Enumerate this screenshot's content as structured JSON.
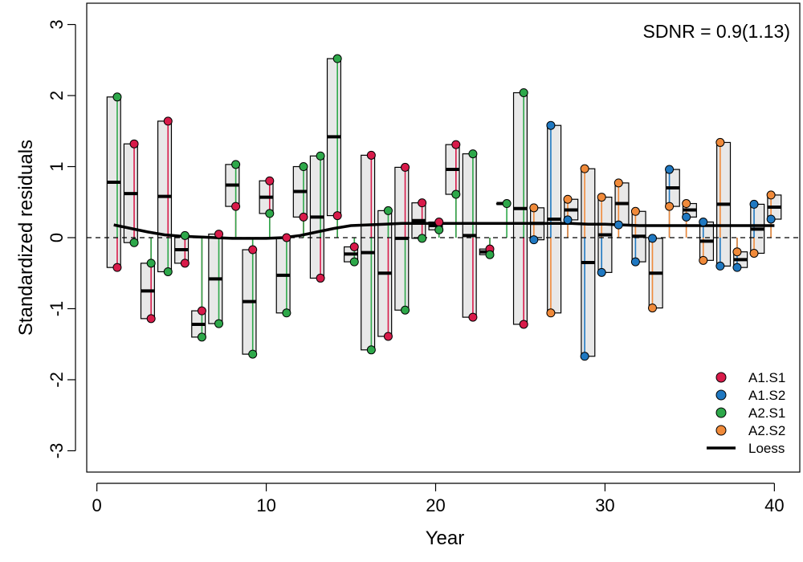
{
  "chart_data": {
    "type": "scatter",
    "title": "",
    "xlabel": "Year",
    "ylabel": "Standardized residuals",
    "annotation": "SDNR = 0.9(1.13)",
    "xlim": [
      -0.6,
      41.5
    ],
    "ylim": [
      -3.3,
      3.3
    ],
    "x_ticks": [
      0,
      10,
      20,
      30,
      40
    ],
    "y_ticks": [
      -3,
      -2,
      -1,
      0,
      1,
      2,
      3
    ],
    "reference_line": 0,
    "legend_position": "bottom-right",
    "series": [
      {
        "name": "A1.S1",
        "color": "#d81b4a",
        "points": [
          [
            1.2,
            -0.42
          ],
          [
            2.2,
            1.32
          ],
          [
            3.2,
            -1.14
          ],
          [
            4.2,
            1.64
          ],
          [
            5.2,
            -0.36
          ],
          [
            6.2,
            -1.03
          ],
          [
            7.2,
            0.05
          ],
          [
            8.2,
            0.44
          ],
          [
            9.2,
            -0.17
          ],
          [
            10.2,
            0.8
          ],
          [
            11.2,
            0.0
          ],
          [
            12.2,
            0.29
          ],
          [
            13.2,
            -0.57
          ],
          [
            14.2,
            0.31
          ],
          [
            15.2,
            -0.13
          ],
          [
            16.2,
            1.16
          ],
          [
            17.2,
            -1.39
          ],
          [
            18.2,
            0.99
          ],
          [
            19.2,
            0.49
          ],
          [
            20.2,
            0.22
          ],
          [
            21.2,
            1.31
          ],
          [
            22.2,
            -1.12
          ],
          [
            23.2,
            -0.16
          ],
          [
            25.2,
            -1.22
          ]
        ]
      },
      {
        "name": "A1.S2",
        "color": "#1f78c1",
        "points": [
          [
            25.8,
            -0.03
          ],
          [
            26.8,
            1.58
          ],
          [
            27.8,
            0.25
          ],
          [
            28.8,
            -1.67
          ],
          [
            29.8,
            -0.49
          ],
          [
            30.8,
            0.18
          ],
          [
            31.8,
            -0.34
          ],
          [
            32.8,
            -0.01
          ],
          [
            33.8,
            0.96
          ],
          [
            34.8,
            0.29
          ],
          [
            35.8,
            0.22
          ],
          [
            36.8,
            -0.4
          ],
          [
            37.8,
            -0.42
          ],
          [
            38.8,
            0.47
          ],
          [
            39.8,
            0.26
          ]
        ]
      },
      {
        "name": "A2.S1",
        "color": "#2ea84a",
        "points": [
          [
            1.2,
            1.98
          ],
          [
            2.2,
            -0.07
          ],
          [
            3.2,
            -0.36
          ],
          [
            4.2,
            -0.48
          ],
          [
            5.2,
            0.03
          ],
          [
            6.2,
            -1.4
          ],
          [
            7.2,
            -1.21
          ],
          [
            8.2,
            1.03
          ],
          [
            9.2,
            -1.64
          ],
          [
            10.2,
            0.34
          ],
          [
            11.2,
            -1.06
          ],
          [
            12.2,
            1.0
          ],
          [
            13.2,
            1.15
          ],
          [
            14.2,
            2.52
          ],
          [
            15.2,
            -0.34
          ],
          [
            16.2,
            -1.58
          ],
          [
            17.2,
            0.38
          ],
          [
            18.2,
            -1.02
          ],
          [
            19.2,
            -0.01
          ],
          [
            20.2,
            0.11
          ],
          [
            21.2,
            0.61
          ],
          [
            22.2,
            1.18
          ],
          [
            23.2,
            -0.24
          ],
          [
            24.2,
            0.48
          ],
          [
            25.2,
            2.04
          ]
        ]
      },
      {
        "name": "A2.S2",
        "color": "#f08a3a",
        "points": [
          [
            25.8,
            0.42
          ],
          [
            26.8,
            -1.06
          ],
          [
            27.8,
            0.54
          ],
          [
            28.8,
            0.97
          ],
          [
            29.8,
            0.57
          ],
          [
            30.8,
            0.77
          ],
          [
            31.8,
            0.37
          ],
          [
            32.8,
            -0.99
          ],
          [
            33.8,
            0.44
          ],
          [
            34.8,
            0.48
          ],
          [
            35.8,
            -0.32
          ],
          [
            36.8,
            1.34
          ],
          [
            37.8,
            -0.2
          ],
          [
            38.8,
            -0.22
          ],
          [
            39.8,
            0.6
          ]
        ]
      }
    ],
    "boxes": [
      {
        "x": 1,
        "low": -0.42,
        "high": 1.98,
        "mean": 0.78
      },
      {
        "x": 2,
        "low": -0.07,
        "high": 1.32,
        "mean": 0.62
      },
      {
        "x": 3,
        "low": -1.14,
        "high": -0.36,
        "mean": -0.75
      },
      {
        "x": 4,
        "low": -0.48,
        "high": 1.64,
        "mean": 0.58
      },
      {
        "x": 5,
        "low": -0.36,
        "high": 0.03,
        "mean": -0.17
      },
      {
        "x": 6,
        "low": -1.4,
        "high": -1.03,
        "mean": -1.22
      },
      {
        "x": 7,
        "low": -1.21,
        "high": 0.05,
        "mean": -0.58
      },
      {
        "x": 8,
        "low": 0.44,
        "high": 1.03,
        "mean": 0.74
      },
      {
        "x": 9,
        "low": -1.64,
        "high": -0.17,
        "mean": -0.9
      },
      {
        "x": 10,
        "low": 0.34,
        "high": 0.8,
        "mean": 0.57
      },
      {
        "x": 11,
        "low": -1.06,
        "high": 0.0,
        "mean": -0.53
      },
      {
        "x": 12,
        "low": 0.29,
        "high": 1.0,
        "mean": 0.65
      },
      {
        "x": 13,
        "low": -0.57,
        "high": 1.15,
        "mean": 0.29
      },
      {
        "x": 14,
        "low": 0.31,
        "high": 2.52,
        "mean": 1.42
      },
      {
        "x": 15,
        "low": -0.34,
        "high": -0.13,
        "mean": -0.23
      },
      {
        "x": 16,
        "low": -1.58,
        "high": 1.16,
        "mean": -0.21
      },
      {
        "x": 17,
        "low": -1.39,
        "high": 0.38,
        "mean": -0.5
      },
      {
        "x": 18,
        "low": -1.02,
        "high": 0.99,
        "mean": -0.01
      },
      {
        "x": 19,
        "low": -0.01,
        "high": 0.49,
        "mean": 0.24
      },
      {
        "x": 20,
        "low": 0.11,
        "high": 0.22,
        "mean": 0.17
      },
      {
        "x": 21,
        "low": 0.61,
        "high": 1.31,
        "mean": 0.96
      },
      {
        "x": 22,
        "low": -1.12,
        "high": 1.18,
        "mean": 0.03
      },
      {
        "x": 23,
        "low": -0.24,
        "high": -0.16,
        "mean": -0.2
      },
      {
        "x": 24,
        "low": 0.48,
        "high": 0.48,
        "mean": 0.48
      },
      {
        "x": 25,
        "low": -1.22,
        "high": 2.04,
        "mean": 0.41
      },
      {
        "x": 26,
        "low": -0.03,
        "high": 0.42,
        "mean": 0.2
      },
      {
        "x": 27,
        "low": -1.06,
        "high": 1.58,
        "mean": 0.26
      },
      {
        "x": 28,
        "low": 0.25,
        "high": 0.54,
        "mean": 0.39
      },
      {
        "x": 29,
        "low": -1.67,
        "high": 0.97,
        "mean": -0.35
      },
      {
        "x": 30,
        "low": -0.49,
        "high": 0.57,
        "mean": 0.04
      },
      {
        "x": 31,
        "low": 0.18,
        "high": 0.77,
        "mean": 0.48
      },
      {
        "x": 32,
        "low": -0.34,
        "high": 0.37,
        "mean": 0.02
      },
      {
        "x": 33,
        "low": -0.99,
        "high": -0.01,
        "mean": -0.5
      },
      {
        "x": 34,
        "low": 0.44,
        "high": 0.96,
        "mean": 0.7
      },
      {
        "x": 35,
        "low": 0.29,
        "high": 0.48,
        "mean": 0.39
      },
      {
        "x": 36,
        "low": -0.32,
        "high": 0.22,
        "mean": -0.05
      },
      {
        "x": 37,
        "low": -0.4,
        "high": 1.34,
        "mean": 0.47
      },
      {
        "x": 38,
        "low": -0.42,
        "high": -0.2,
        "mean": -0.31
      },
      {
        "x": 39,
        "low": -0.22,
        "high": 0.47,
        "mean": 0.12
      },
      {
        "x": 40,
        "low": 0.26,
        "high": 0.6,
        "mean": 0.43
      }
    ],
    "loess": {
      "name": "Loess",
      "color": "#000000",
      "points": [
        [
          1,
          0.18
        ],
        [
          2,
          0.13
        ],
        [
          3,
          0.08
        ],
        [
          4,
          0.04
        ],
        [
          5,
          0.02
        ],
        [
          6,
          0.01
        ],
        [
          7,
          0.0
        ],
        [
          8,
          -0.01
        ],
        [
          9,
          -0.01
        ],
        [
          10,
          -0.01
        ],
        [
          11,
          0.0
        ],
        [
          12,
          0.03
        ],
        [
          13,
          0.08
        ],
        [
          14,
          0.13
        ],
        [
          15,
          0.17
        ],
        [
          16,
          0.18
        ],
        [
          17,
          0.19
        ],
        [
          18,
          0.2
        ],
        [
          19,
          0.2
        ],
        [
          20,
          0.2
        ],
        [
          21,
          0.2
        ],
        [
          22,
          0.2
        ],
        [
          23,
          0.2
        ],
        [
          24,
          0.2
        ],
        [
          25,
          0.2
        ],
        [
          26,
          0.2
        ],
        [
          27,
          0.2
        ],
        [
          28,
          0.2
        ],
        [
          29,
          0.19
        ],
        [
          30,
          0.19
        ],
        [
          31,
          0.18
        ],
        [
          32,
          0.17
        ],
        [
          33,
          0.17
        ],
        [
          34,
          0.17
        ],
        [
          35,
          0.17
        ],
        [
          36,
          0.17
        ],
        [
          37,
          0.17
        ],
        [
          38,
          0.17
        ],
        [
          39,
          0.17
        ],
        [
          40,
          0.17
        ]
      ]
    }
  }
}
